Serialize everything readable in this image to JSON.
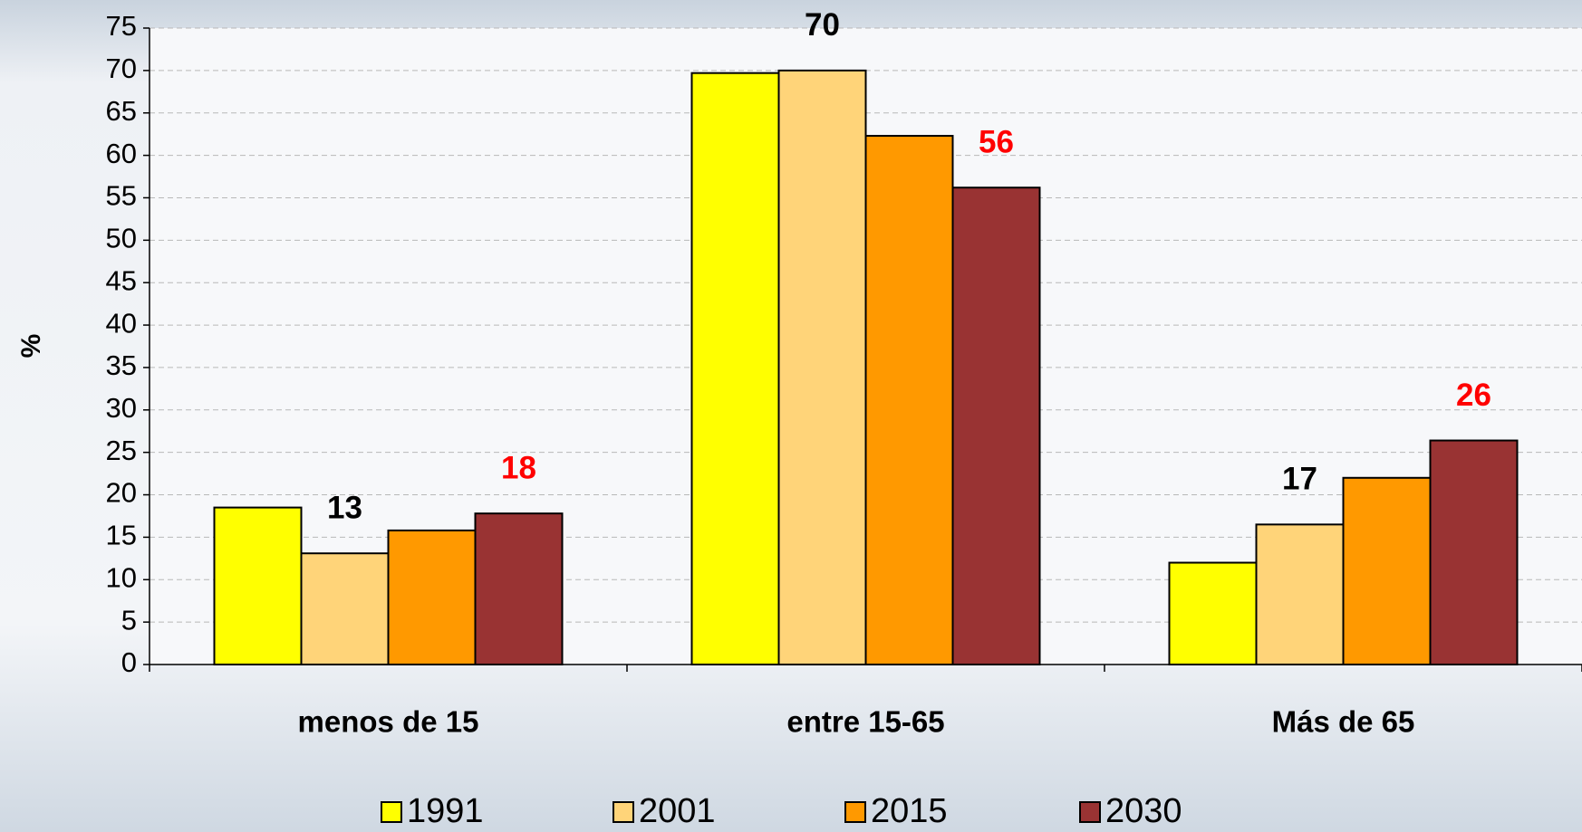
{
  "chart_data": {
    "type": "bar",
    "ylabel": "%",
    "categories": [
      "menos de 15",
      "entre 15-65",
      "Más de 65"
    ],
    "series": [
      {
        "name": "1991",
        "color": "#ffff00",
        "values": [
          18.5,
          69.7,
          12
        ]
      },
      {
        "name": "2001",
        "color": "#ffd479",
        "values": [
          13.1,
          70,
          16.5
        ],
        "value_labels": [
          "13",
          "70",
          "17"
        ],
        "label_color": "#000000"
      },
      {
        "name": "2015",
        "color": "#ff9900",
        "values": [
          15.8,
          62.3,
          22
        ]
      },
      {
        "name": "2030",
        "color": "#993333",
        "values": [
          17.8,
          56.2,
          26.4
        ],
        "value_labels": [
          "18",
          "56",
          "26"
        ],
        "label_color": "#ff0000"
      }
    ],
    "ylim": [
      0,
      75
    ],
    "yticks": [
      0,
      5,
      10,
      15,
      20,
      25,
      30,
      35,
      40,
      45,
      50,
      55,
      60,
      65,
      70,
      75
    ],
    "grid": true
  }
}
